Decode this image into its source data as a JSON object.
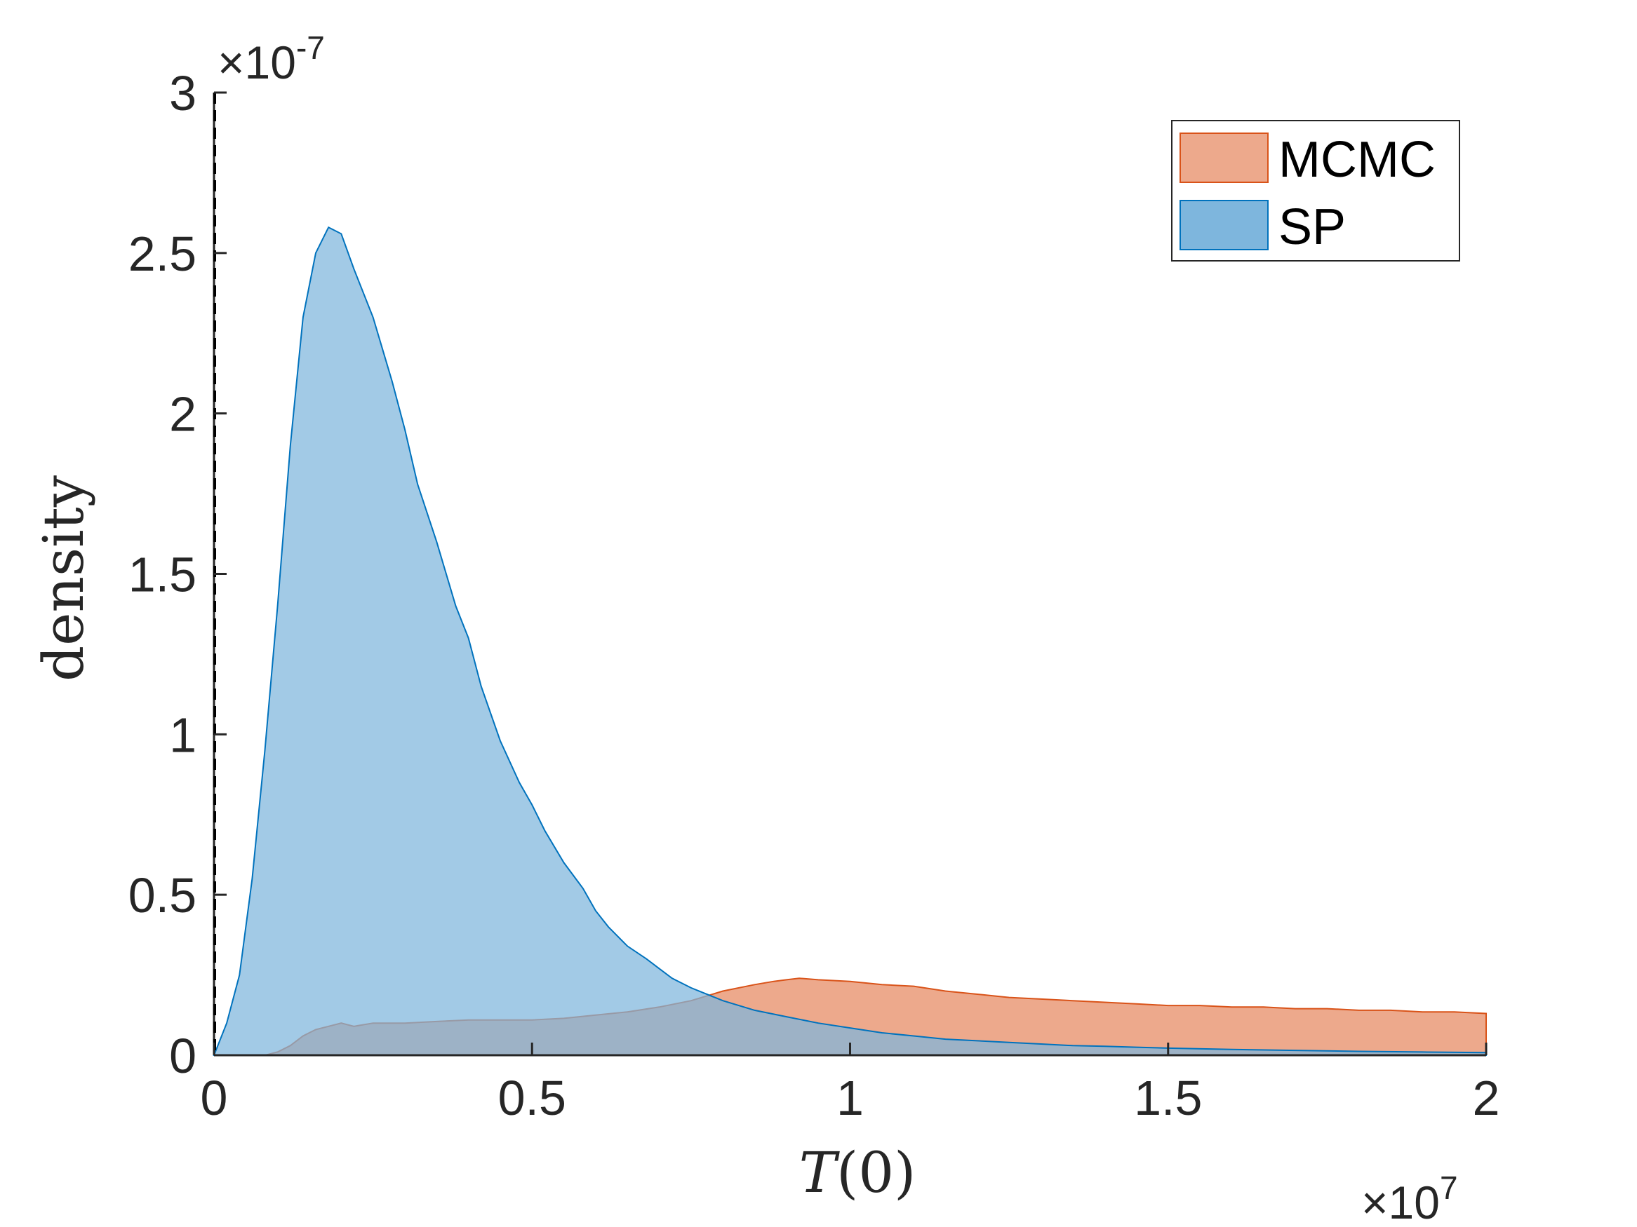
{
  "chart_data": {
    "type": "area",
    "xlabel_var": "T",
    "xlabel_arg": "(0)",
    "ylabel": "density",
    "x_exponent_base": "×10",
    "x_exponent_power": "7",
    "y_exponent_base": "×10",
    "y_exponent_power": "-7",
    "xlim": [
      0,
      2
    ],
    "ylim": [
      0,
      3
    ],
    "x_ticks": [
      0,
      0.5,
      1,
      1.5,
      2
    ],
    "x_tick_labels": [
      "0",
      "0.5",
      "1",
      "1.5",
      "2"
    ],
    "y_ticks": [
      0,
      0.5,
      1,
      1.5,
      2,
      2.5,
      3
    ],
    "y_tick_labels": [
      "0",
      "0.5",
      "1",
      "1.5",
      "2",
      "2.5",
      "3"
    ],
    "grid": false,
    "legend_position": "top-right",
    "reference_line_x": 0,
    "series": [
      {
        "name": "MCMC",
        "color_fill": "#eda98c",
        "color_edge": "#d95319",
        "x": [
          0.0,
          0.08,
          0.1,
          0.12,
          0.14,
          0.16,
          0.18,
          0.2,
          0.22,
          0.25,
          0.3,
          0.35,
          0.4,
          0.45,
          0.5,
          0.55,
          0.6,
          0.65,
          0.7,
          0.75,
          0.8,
          0.85,
          0.88,
          0.9,
          0.92,
          0.95,
          1.0,
          1.05,
          1.1,
          1.15,
          1.2,
          1.25,
          1.3,
          1.35,
          1.4,
          1.45,
          1.5,
          1.55,
          1.6,
          1.65,
          1.7,
          1.75,
          1.8,
          1.85,
          1.9,
          1.95,
          2.0
        ],
        "y": [
          0.0,
          0.0,
          0.01,
          0.03,
          0.06,
          0.08,
          0.09,
          0.1,
          0.09,
          0.1,
          0.1,
          0.105,
          0.11,
          0.11,
          0.11,
          0.115,
          0.125,
          0.135,
          0.15,
          0.17,
          0.2,
          0.22,
          0.23,
          0.235,
          0.24,
          0.235,
          0.23,
          0.22,
          0.215,
          0.2,
          0.19,
          0.18,
          0.175,
          0.17,
          0.165,
          0.16,
          0.155,
          0.155,
          0.15,
          0.15,
          0.145,
          0.145,
          0.14,
          0.14,
          0.135,
          0.135,
          0.13
        ]
      },
      {
        "name": "SP",
        "color_fill": "#7eb6dd",
        "color_edge": "#0072bd",
        "x": [
          0.0,
          0.02,
          0.04,
          0.06,
          0.08,
          0.1,
          0.12,
          0.14,
          0.16,
          0.18,
          0.2,
          0.22,
          0.25,
          0.28,
          0.3,
          0.32,
          0.35,
          0.38,
          0.4,
          0.42,
          0.45,
          0.48,
          0.5,
          0.52,
          0.55,
          0.58,
          0.6,
          0.62,
          0.65,
          0.68,
          0.7,
          0.72,
          0.75,
          0.8,
          0.85,
          0.9,
          0.95,
          1.0,
          1.05,
          1.1,
          1.15,
          1.2,
          1.25,
          1.3,
          1.35,
          1.4,
          1.45,
          1.5,
          1.6,
          1.7,
          1.8,
          1.9,
          2.0
        ],
        "y": [
          0.0,
          0.1,
          0.25,
          0.55,
          0.95,
          1.4,
          1.9,
          2.3,
          2.5,
          2.58,
          2.56,
          2.45,
          2.3,
          2.1,
          1.95,
          1.78,
          1.6,
          1.4,
          1.3,
          1.15,
          0.98,
          0.85,
          0.78,
          0.7,
          0.6,
          0.52,
          0.45,
          0.4,
          0.34,
          0.3,
          0.27,
          0.24,
          0.21,
          0.17,
          0.14,
          0.12,
          0.1,
          0.085,
          0.07,
          0.06,
          0.05,
          0.045,
          0.04,
          0.035,
          0.03,
          0.028,
          0.025,
          0.022,
          0.018,
          0.015,
          0.012,
          0.01,
          0.008
        ]
      }
    ]
  }
}
